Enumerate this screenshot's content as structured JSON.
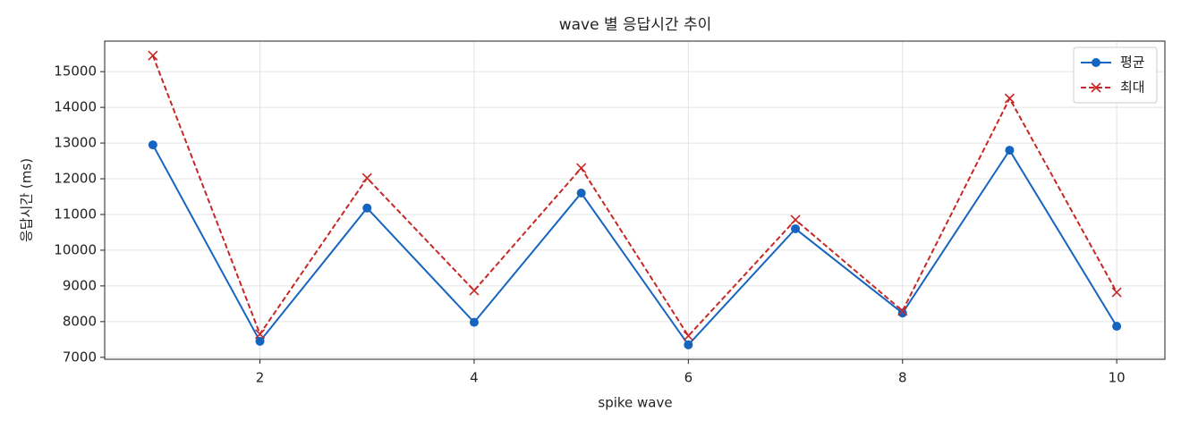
{
  "chart_data": {
    "type": "line",
    "title": "wave 별 응답시간 추이",
    "xlabel": "spike wave",
    "ylabel": "응답시간 (ms)",
    "x": [
      1,
      2,
      3,
      4,
      5,
      6,
      7,
      8,
      9,
      10
    ],
    "series": [
      {
        "name": "평균",
        "color": "#1565c0",
        "marker": "o",
        "linestyle": "solid",
        "values": [
          12950,
          7450,
          11180,
          7980,
          11600,
          7350,
          10600,
          8240,
          12800,
          7870
        ]
      },
      {
        "name": "최대",
        "color": "#c62828",
        "marker": "x",
        "linestyle": "dashed",
        "values": [
          15450,
          7650,
          12020,
          8870,
          12300,
          7600,
          10850,
          8300,
          14250,
          8820
        ]
      }
    ],
    "xlim": [
      0.55,
      10.45
    ],
    "xticks": [
      2,
      4,
      6,
      8,
      10
    ],
    "ylim": [
      6945,
      15855
    ],
    "yticks": [
      7000,
      8000,
      9000,
      10000,
      11000,
      12000,
      13000,
      14000,
      15000
    ],
    "grid": true,
    "legend": "upper right"
  }
}
